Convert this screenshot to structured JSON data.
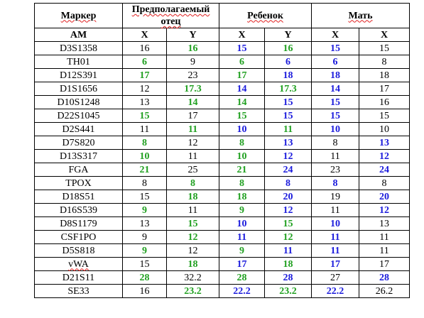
{
  "headers": {
    "marker": "Маркер",
    "father": "Предполагаемый отец",
    "child": "Ребенок",
    "mother": "Мать"
  },
  "subheaders": [
    "AM",
    "X",
    "Y",
    "X",
    "Y",
    "X",
    "X"
  ],
  "colors": {
    "green": "#20a020",
    "blue": "#1a1adc",
    "black": "#000000"
  },
  "rows": [
    {
      "marker": "D3S1358",
      "cells": [
        [
          "16",
          "k"
        ],
        [
          "16",
          "g"
        ],
        [
          "15",
          "b"
        ],
        [
          "16",
          "g"
        ],
        [
          "15",
          "b"
        ],
        [
          "15",
          "k"
        ]
      ]
    },
    {
      "marker": "TH01",
      "cells": [
        [
          "6",
          "g"
        ],
        [
          "9",
          "k"
        ],
        [
          "6",
          "g"
        ],
        [
          "6",
          "b"
        ],
        [
          "6",
          "b"
        ],
        [
          "8",
          "k"
        ]
      ]
    },
    {
      "marker": "D12S391",
      "cells": [
        [
          "17",
          "g"
        ],
        [
          "23",
          "k"
        ],
        [
          "17",
          "g"
        ],
        [
          "18",
          "b"
        ],
        [
          "18",
          "b"
        ],
        [
          "18",
          "k"
        ]
      ]
    },
    {
      "marker": "D1S1656",
      "cells": [
        [
          "12",
          "k"
        ],
        [
          "17.3",
          "g"
        ],
        [
          "14",
          "b"
        ],
        [
          "17.3",
          "g"
        ],
        [
          "14",
          "b"
        ],
        [
          "17",
          "k"
        ]
      ]
    },
    {
      "marker": "D10S1248",
      "cells": [
        [
          "13",
          "k"
        ],
        [
          "14",
          "g"
        ],
        [
          "14",
          "g"
        ],
        [
          "15",
          "b"
        ],
        [
          "15",
          "b"
        ],
        [
          "16",
          "k"
        ]
      ]
    },
    {
      "marker": "D22S1045",
      "cells": [
        [
          "15",
          "g"
        ],
        [
          "17",
          "k"
        ],
        [
          "15",
          "g"
        ],
        [
          "15",
          "b"
        ],
        [
          "15",
          "b"
        ],
        [
          "15",
          "k"
        ]
      ]
    },
    {
      "marker": "D2S441",
      "cells": [
        [
          "11",
          "k"
        ],
        [
          "11",
          "g"
        ],
        [
          "10",
          "b"
        ],
        [
          "11",
          "g"
        ],
        [
          "10",
          "b"
        ],
        [
          "10",
          "k"
        ]
      ]
    },
    {
      "marker": "D7S820",
      "cells": [
        [
          "8",
          "g"
        ],
        [
          "12",
          "k"
        ],
        [
          "8",
          "g"
        ],
        [
          "13",
          "b"
        ],
        [
          "8",
          "k"
        ],
        [
          "13",
          "b"
        ]
      ]
    },
    {
      "marker": "D13S317",
      "cells": [
        [
          "10",
          "g"
        ],
        [
          "11",
          "k"
        ],
        [
          "10",
          "g"
        ],
        [
          "12",
          "b"
        ],
        [
          "11",
          "k"
        ],
        [
          "12",
          "b"
        ]
      ]
    },
    {
      "marker": "FGA",
      "cells": [
        [
          "21",
          "g"
        ],
        [
          "25",
          "k"
        ],
        [
          "21",
          "g"
        ],
        [
          "24",
          "b"
        ],
        [
          "23",
          "k"
        ],
        [
          "24",
          "b"
        ]
      ]
    },
    {
      "marker": "TPOX",
      "cells": [
        [
          "8",
          "k"
        ],
        [
          "8",
          "g"
        ],
        [
          "8",
          "g"
        ],
        [
          "8",
          "b"
        ],
        [
          "8",
          "b"
        ],
        [
          "8",
          "k"
        ]
      ]
    },
    {
      "marker": "D18S51",
      "cells": [
        [
          "15",
          "k"
        ],
        [
          "18",
          "g"
        ],
        [
          "18",
          "g"
        ],
        [
          "20",
          "b"
        ],
        [
          "19",
          "k"
        ],
        [
          "20",
          "b"
        ]
      ]
    },
    {
      "marker": "D16S539",
      "cells": [
        [
          "9",
          "g"
        ],
        [
          "11",
          "k"
        ],
        [
          "9",
          "g"
        ],
        [
          "12",
          "b"
        ],
        [
          "11",
          "k"
        ],
        [
          "12",
          "b"
        ]
      ]
    },
    {
      "marker": "D8S1179",
      "cells": [
        [
          "13",
          "k"
        ],
        [
          "15",
          "g"
        ],
        [
          "10",
          "b"
        ],
        [
          "15",
          "g"
        ],
        [
          "10",
          "b"
        ],
        [
          "13",
          "k"
        ]
      ]
    },
    {
      "marker": "CSF1PO",
      "cells": [
        [
          "9",
          "k"
        ],
        [
          "12",
          "g"
        ],
        [
          "11",
          "b"
        ],
        [
          "12",
          "g"
        ],
        [
          "11",
          "b"
        ],
        [
          "11",
          "k"
        ]
      ]
    },
    {
      "marker": "D5S818",
      "cells": [
        [
          "9",
          "g"
        ],
        [
          "12",
          "k"
        ],
        [
          "9",
          "g"
        ],
        [
          "11",
          "b"
        ],
        [
          "11",
          "b"
        ],
        [
          "11",
          "k"
        ]
      ]
    },
    {
      "marker": "vWA",
      "cells": [
        [
          "15",
          "k"
        ],
        [
          "18",
          "g"
        ],
        [
          "17",
          "b"
        ],
        [
          "18",
          "g"
        ],
        [
          "17",
          "b"
        ],
        [
          "17",
          "k"
        ]
      ]
    },
    {
      "marker": "D21S11",
      "cells": [
        [
          "28",
          "g"
        ],
        [
          "32.2",
          "k"
        ],
        [
          "28",
          "g"
        ],
        [
          "28",
          "b"
        ],
        [
          "27",
          "k"
        ],
        [
          "28",
          "b"
        ]
      ]
    },
    {
      "marker": "SE33",
      "cells": [
        [
          "16",
          "k"
        ],
        [
          "23.2",
          "g"
        ],
        [
          "22.2",
          "b"
        ],
        [
          "23.2",
          "g"
        ],
        [
          "22.2",
          "b"
        ],
        [
          "26.2",
          "k"
        ]
      ]
    }
  ]
}
